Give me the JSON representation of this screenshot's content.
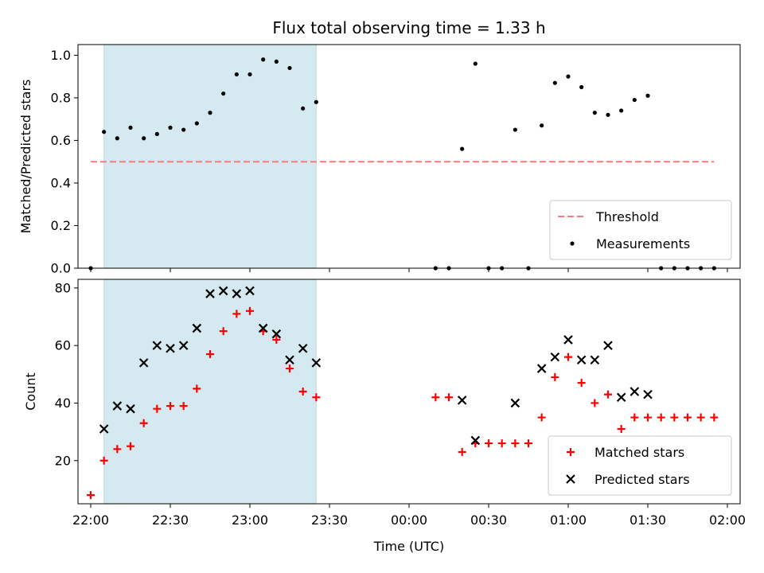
{
  "chart_data": {
    "type": "scatter",
    "title": "Flux total observing time = 1.33 h",
    "xlabel": "Time (UTC)",
    "x_ticks": [
      "22:00",
      "22:30",
      "23:00",
      "23:30",
      "00:00",
      "00:30",
      "01:00",
      "01:30",
      "02:00"
    ],
    "x_range_hours": [
      21.92,
      26.08
    ],
    "shaded_interval": [
      "22:05",
      "23:25"
    ],
    "shade_color": "#d4eaf0",
    "panels": [
      {
        "ylabel": "Matched/Predicted stars",
        "ylim": [
          0,
          1.05
        ],
        "y_ticks": [
          "0.0",
          "0.2",
          "0.4",
          "0.6",
          "0.8",
          "1.0"
        ],
        "threshold": {
          "name": "Threshold",
          "value": 0.5,
          "color": "#f87b7b",
          "x_from": "22:00",
          "x_to": "01:55"
        },
        "series": [
          {
            "name": "Measurements",
            "color": "#000000",
            "marker": "dot",
            "points": [
              [
                "22:00",
                0
              ],
              [
                "22:05",
                0.64
              ],
              [
                "22:10",
                0.61
              ],
              [
                "22:15",
                0.66
              ],
              [
                "22:20",
                0.61
              ],
              [
                "22:25",
                0.63
              ],
              [
                "22:30",
                0.66
              ],
              [
                "22:35",
                0.65
              ],
              [
                "22:40",
                0.68
              ],
              [
                "22:45",
                0.73
              ],
              [
                "22:50",
                0.82
              ],
              [
                "22:55",
                0.91
              ],
              [
                "23:00",
                0.91
              ],
              [
                "23:05",
                0.98
              ],
              [
                "23:10",
                0.97
              ],
              [
                "23:15",
                0.94
              ],
              [
                "23:20",
                0.75
              ],
              [
                "23:25",
                0.78
              ],
              [
                "00:10",
                0
              ],
              [
                "00:15",
                0
              ],
              [
                "00:20",
                0.56
              ],
              [
                "00:25",
                0.96
              ],
              [
                "00:30",
                0
              ],
              [
                "00:35",
                0
              ],
              [
                "00:40",
                0.65
              ],
              [
                "00:45",
                0
              ],
              [
                "00:50",
                0.67
              ],
              [
                "00:55",
                0.87
              ],
              [
                "01:00",
                0.9
              ],
              [
                "01:05",
                0.85
              ],
              [
                "01:10",
                0.73
              ],
              [
                "01:15",
                0.72
              ],
              [
                "01:20",
                0.74
              ],
              [
                "01:25",
                0.79
              ],
              [
                "01:30",
                0.81
              ],
              [
                "01:35",
                0
              ],
              [
                "01:40",
                0
              ],
              [
                "01:45",
                0
              ],
              [
                "01:50",
                0
              ],
              [
                "01:55",
                0
              ]
            ]
          }
        ],
        "legend": {
          "placement": "lower-right",
          "entries": [
            "Threshold",
            "Measurements"
          ]
        }
      },
      {
        "ylabel": "Count",
        "ylim": [
          5,
          83
        ],
        "y_ticks": [
          "20",
          "40",
          "60",
          "80"
        ],
        "series": [
          {
            "name": "Matched stars",
            "color": "#ff0000",
            "marker": "plus",
            "points": [
              [
                "22:00",
                8
              ],
              [
                "22:05",
                20
              ],
              [
                "22:10",
                24
              ],
              [
                "22:15",
                25
              ],
              [
                "22:20",
                33
              ],
              [
                "22:25",
                38
              ],
              [
                "22:30",
                39
              ],
              [
                "22:35",
                39
              ],
              [
                "22:40",
                45
              ],
              [
                "22:45",
                57
              ],
              [
                "22:50",
                65
              ],
              [
                "22:55",
                71
              ],
              [
                "23:00",
                72
              ],
              [
                "23:05",
                65
              ],
              [
                "23:10",
                62
              ],
              [
                "23:15",
                52
              ],
              [
                "23:20",
                44
              ],
              [
                "23:25",
                42
              ],
              [
                "00:10",
                42
              ],
              [
                "00:15",
                42
              ],
              [
                "00:20",
                23
              ],
              [
                "00:25",
                26
              ],
              [
                "00:30",
                26
              ],
              [
                "00:35",
                26
              ],
              [
                "00:40",
                26
              ],
              [
                "00:45",
                26
              ],
              [
                "00:50",
                35
              ],
              [
                "00:55",
                49
              ],
              [
                "01:00",
                56
              ],
              [
                "01:05",
                47
              ],
              [
                "01:10",
                40
              ],
              [
                "01:15",
                43
              ],
              [
                "01:20",
                31
              ],
              [
                "01:25",
                35
              ],
              [
                "01:30",
                35
              ],
              [
                "01:35",
                35
              ],
              [
                "01:40",
                35
              ],
              [
                "01:45",
                35
              ],
              [
                "01:50",
                35
              ],
              [
                "01:55",
                35
              ]
            ]
          },
          {
            "name": "Predicted stars",
            "color": "#000000",
            "marker": "x",
            "points": [
              [
                "22:05",
                31
              ],
              [
                "22:10",
                39
              ],
              [
                "22:15",
                38
              ],
              [
                "22:20",
                54
              ],
              [
                "22:25",
                60
              ],
              [
                "22:30",
                59
              ],
              [
                "22:35",
                60
              ],
              [
                "22:40",
                66
              ],
              [
                "22:45",
                78
              ],
              [
                "22:50",
                79
              ],
              [
                "22:55",
                78
              ],
              [
                "23:00",
                79
              ],
              [
                "23:05",
                66
              ],
              [
                "23:10",
                64
              ],
              [
                "23:15",
                55
              ],
              [
                "23:20",
                59
              ],
              [
                "23:25",
                54
              ],
              [
                "00:20",
                41
              ],
              [
                "00:25",
                27
              ],
              [
                "00:40",
                40
              ],
              [
                "00:50",
                52
              ],
              [
                "00:55",
                56
              ],
              [
                "01:00",
                62
              ],
              [
                "01:05",
                55
              ],
              [
                "01:10",
                55
              ],
              [
                "01:15",
                60
              ],
              [
                "01:20",
                42
              ],
              [
                "01:25",
                44
              ],
              [
                "01:30",
                43
              ]
            ]
          }
        ],
        "legend": {
          "placement": "lower-right",
          "entries": [
            "Matched stars",
            "Predicted stars"
          ]
        }
      }
    ]
  }
}
